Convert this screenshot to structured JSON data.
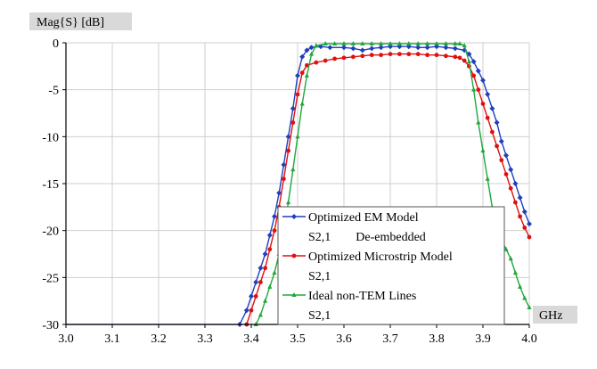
{
  "chart_data": {
    "type": "line",
    "y_unit": "Mag{S} [dB]",
    "x_unit": "GHz",
    "xlim": [
      3.0,
      4.0
    ],
    "ylim": [
      -30,
      0
    ],
    "x_ticks": [
      "3.0",
      "3.1",
      "3.2",
      "3.3",
      "3.4",
      "3.5",
      "3.6",
      "3.7",
      "3.8",
      "3.9",
      "4.0"
    ],
    "y_ticks": [
      "0",
      "-5",
      "-10",
      "-15",
      "-20",
      "-25",
      "-30"
    ],
    "grid": true,
    "legend_position": "bottom-right",
    "series": [
      {
        "name": "Optimized EM Model",
        "subtitle": "S2,1        De-embedded",
        "color": "#1f3fbf",
        "marker": "diamond",
        "x": [
          3.375,
          3.39,
          3.4,
          3.41,
          3.42,
          3.43,
          3.44,
          3.45,
          3.46,
          3.47,
          3.48,
          3.49,
          3.5,
          3.51,
          3.52,
          3.53,
          3.55,
          3.57,
          3.6,
          3.62,
          3.64,
          3.66,
          3.68,
          3.7,
          3.72,
          3.74,
          3.76,
          3.78,
          3.8,
          3.82,
          3.84,
          3.86,
          3.87,
          3.88,
          3.89,
          3.9,
          3.91,
          3.92,
          3.93,
          3.94,
          3.95,
          3.96,
          3.97,
          3.98,
          3.99,
          4.0
        ],
        "y": [
          -30,
          -28.5,
          -27,
          -25.5,
          -24,
          -22.5,
          -20.5,
          -18.5,
          -16,
          -13,
          -10,
          -7,
          -3.5,
          -1.5,
          -0.8,
          -0.5,
          -0.4,
          -0.5,
          -0.5,
          -0.6,
          -0.8,
          -0.6,
          -0.5,
          -0.4,
          -0.4,
          -0.4,
          -0.5,
          -0.5,
          -0.4,
          -0.5,
          -0.6,
          -0.8,
          -1.2,
          -2,
          -3,
          -4,
          -5.5,
          -7,
          -8.5,
          -10.5,
          -12,
          -13.5,
          -15,
          -16.5,
          -18,
          -19.3
        ]
      },
      {
        "name": "Optimized Microstrip Model",
        "subtitle": "S2,1",
        "color": "#e01010",
        "marker": "circle",
        "x": [
          3.39,
          3.4,
          3.41,
          3.42,
          3.43,
          3.44,
          3.45,
          3.46,
          3.47,
          3.48,
          3.49,
          3.5,
          3.51,
          3.52,
          3.54,
          3.56,
          3.58,
          3.6,
          3.62,
          3.64,
          3.66,
          3.68,
          3.7,
          3.72,
          3.74,
          3.76,
          3.78,
          3.8,
          3.82,
          3.84,
          3.85,
          3.86,
          3.87,
          3.88,
          3.89,
          3.9,
          3.91,
          3.92,
          3.93,
          3.94,
          3.95,
          3.96,
          3.97,
          3.98,
          3.99,
          4.0
        ],
        "y": [
          -30,
          -28.5,
          -27,
          -25.5,
          -24,
          -22,
          -20,
          -17.5,
          -14.5,
          -11.5,
          -8.5,
          -5.5,
          -3.2,
          -2.4,
          -2.1,
          -1.9,
          -1.7,
          -1.6,
          -1.5,
          -1.4,
          -1.3,
          -1.3,
          -1.2,
          -1.2,
          -1.2,
          -1.2,
          -1.3,
          -1.3,
          -1.4,
          -1.5,
          -1.6,
          -1.9,
          -2.5,
          -3.5,
          -5,
          -6.5,
          -8,
          -9.5,
          -11,
          -12.5,
          -14,
          -15.5,
          -17,
          -18.5,
          -19.7,
          -20.7
        ]
      },
      {
        "name": "Ideal non-TEM Lines",
        "subtitle": "S2,1",
        "color": "#1fa83c",
        "marker": "triangle",
        "x": [
          3.41,
          3.42,
          3.43,
          3.44,
          3.45,
          3.46,
          3.47,
          3.48,
          3.49,
          3.5,
          3.51,
          3.52,
          3.53,
          3.54,
          3.56,
          3.58,
          3.6,
          3.62,
          3.64,
          3.66,
          3.68,
          3.7,
          3.72,
          3.74,
          3.76,
          3.78,
          3.8,
          3.82,
          3.84,
          3.85,
          3.86,
          3.87,
          3.88,
          3.89,
          3.9,
          3.91,
          3.92,
          3.93,
          3.94,
          3.95,
          3.96,
          3.97,
          3.98,
          3.99,
          4.0
        ],
        "y": [
          -30,
          -29,
          -27.5,
          -26,
          -24.5,
          -22.5,
          -20,
          -17,
          -13.5,
          -10,
          -6.5,
          -3.5,
          -1.2,
          -0.3,
          -0.1,
          -0.1,
          -0.1,
          -0.1,
          -0.1,
          -0.1,
          -0.1,
          -0.1,
          -0.1,
          -0.1,
          -0.1,
          -0.1,
          -0.1,
          -0.1,
          -0.1,
          -0.1,
          -0.3,
          -2,
          -5,
          -8.5,
          -11.5,
          -14.5,
          -17.5,
          -19.5,
          -21,
          -22,
          -23,
          -24.5,
          -26,
          -27.2,
          -28.2
        ]
      }
    ]
  }
}
